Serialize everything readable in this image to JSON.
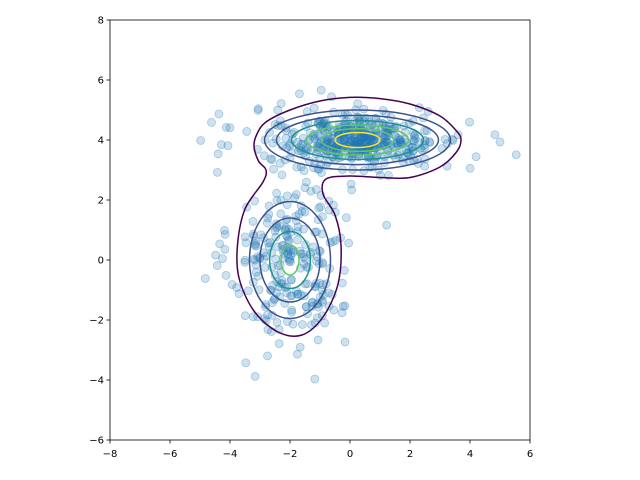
{
  "chart_data": {
    "type": "scatter",
    "title": "",
    "xlabel": "",
    "ylabel": "",
    "xlim": [
      -8,
      6
    ],
    "ylim": [
      -6,
      8
    ],
    "xticks": [
      -8,
      -6,
      -4,
      -2,
      0,
      2,
      4,
      6
    ],
    "yticks": [
      -6,
      -4,
      -2,
      0,
      2,
      4,
      6,
      8
    ],
    "xtick_labels": [
      "−8",
      "−6",
      "−4",
      "−2",
      "0",
      "2",
      "4",
      "6"
    ],
    "ytick_labels": [
      "−6",
      "−4",
      "−2",
      "0",
      "2",
      "4",
      "6",
      "8"
    ],
    "grid": false,
    "legend": "none",
    "colors": {
      "points": "#1f77b4",
      "contour_levels": [
        "#440154",
        "#3b528b",
        "#21918c",
        "#5ec962",
        "#fde725"
      ]
    },
    "components": [
      {
        "center": [
          -2.0,
          0.0
        ],
        "sd": [
          1.0,
          1.5
        ],
        "count": 250
      },
      {
        "center": [
          0.25,
          4.0
        ],
        "sd": [
          1.8,
          0.55
        ],
        "count": 300
      },
      {
        "center": [
          0.25,
          4.0
        ],
        "sd": [
          0.8,
          0.3
        ],
        "count": 150
      }
    ],
    "contours": [
      {
        "level": 1,
        "kind": "envelope",
        "points": [
          [
            -3.1,
            4.2
          ],
          [
            -2.8,
            4.6
          ],
          [
            -2.0,
            5.0
          ],
          [
            -1.0,
            5.3
          ],
          [
            0.0,
            5.42
          ],
          [
            1.0,
            5.38
          ],
          [
            2.0,
            5.2
          ],
          [
            3.0,
            4.8
          ],
          [
            3.55,
            4.3
          ],
          [
            3.7,
            4.0
          ],
          [
            3.55,
            3.6
          ],
          [
            3.0,
            3.1
          ],
          [
            2.0,
            2.75
          ],
          [
            1.0,
            2.75
          ],
          [
            0.0,
            2.8
          ],
          [
            -0.8,
            2.7
          ],
          [
            -0.9,
            2.2
          ],
          [
            -0.5,
            1.5
          ],
          [
            -0.3,
            0.5
          ],
          [
            -0.4,
            -0.8
          ],
          [
            -0.9,
            -1.9
          ],
          [
            -1.6,
            -2.5
          ],
          [
            -2.4,
            -2.4
          ],
          [
            -3.2,
            -1.7
          ],
          [
            -3.7,
            -0.6
          ],
          [
            -3.75,
            0.5
          ],
          [
            -3.5,
            1.7
          ],
          [
            -2.9,
            2.6
          ],
          [
            -2.8,
            3.0
          ],
          [
            -3.05,
            3.3
          ],
          [
            -3.2,
            3.8
          ]
        ]
      },
      {
        "level": 2,
        "kind": "ellipse",
        "center": [
          -2.0,
          0.0
        ],
        "rx": 1.35,
        "ry": 1.95
      },
      {
        "level": 2,
        "kind": "ellipse",
        "center": [
          0.25,
          4.0
        ],
        "rx": 3.1,
        "ry": 1.0
      },
      {
        "level": 3,
        "kind": "ellipse",
        "center": [
          -2.0,
          0.0
        ],
        "rx": 1.0,
        "ry": 1.4
      },
      {
        "level": 3,
        "kind": "ellipse",
        "center": [
          0.25,
          4.0
        ],
        "rx": 2.7,
        "ry": 0.82
      },
      {
        "level": 4,
        "kind": "ellipse",
        "center": [
          -2.0,
          0.0
        ],
        "rx": 0.68,
        "ry": 0.95
      },
      {
        "level": 4,
        "kind": "ellipse",
        "center": [
          0.25,
          4.0
        ],
        "rx": 2.2,
        "ry": 0.65
      },
      {
        "level": 5,
        "kind": "ellipse",
        "center": [
          -2.0,
          0.0
        ],
        "rx": 0.3,
        "ry": 0.5
      },
      {
        "level": 5,
        "kind": "ellipse",
        "center": [
          0.25,
          4.0
        ],
        "rx": 1.7,
        "ry": 0.5
      },
      {
        "level": 6,
        "kind": "ellipse",
        "center": [
          0.25,
          4.0
        ],
        "rx": 1.2,
        "ry": 0.38
      },
      {
        "level": 7,
        "kind": "ellipse",
        "center": [
          0.25,
          4.0
        ],
        "rx": 0.75,
        "ry": 0.25
      }
    ]
  }
}
